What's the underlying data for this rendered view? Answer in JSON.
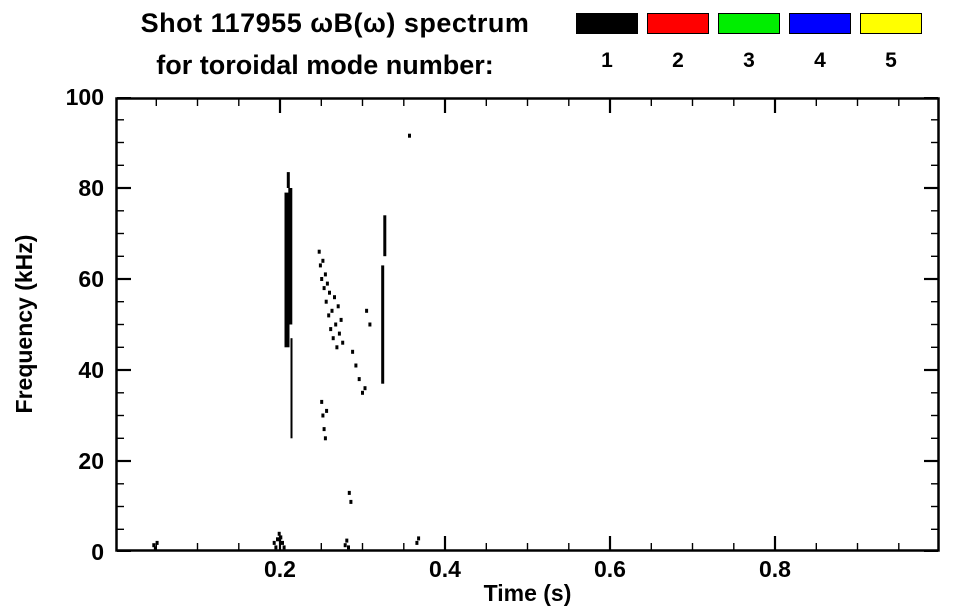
{
  "title": {
    "line1": "Shot 117955 ωB(ω) spectrum",
    "line2": "for toroidal mode number:"
  },
  "legend": {
    "entries": [
      {
        "label": "1",
        "color": "#000000"
      },
      {
        "label": "2",
        "color": "#ff0000"
      },
      {
        "label": "3",
        "color": "#00ee00"
      },
      {
        "label": "4",
        "color": "#0000ff"
      },
      {
        "label": "5",
        "color": "#ffff00"
      }
    ]
  },
  "chart_data": {
    "type": "scatter",
    "title": "Shot 117955 ωB(ω) spectrum for toroidal mode number:",
    "xlabel": "Time (s)",
    "ylabel": "Frequency (kHz)",
    "xlim": [
      0,
      1.0
    ],
    "ylim": [
      0,
      100
    ],
    "grid": false,
    "legend_position": "top-right",
    "x_major_ticks": [
      0.2,
      0.4,
      0.6,
      0.8
    ],
    "x_tick_labels": [
      "0.2",
      "0.4",
      "0.6",
      "0.8"
    ],
    "x_minor_step": 0.05,
    "y_major_ticks": [
      0,
      20,
      40,
      60,
      80,
      100
    ],
    "y_tick_labels": [
      "0",
      "20",
      "40",
      "60",
      "80",
      "100"
    ],
    "y_minor_step": 5,
    "series": [
      {
        "name": "toroidal mode n=1",
        "color": "#000000",
        "segments_note": "vertical streaks as [time_s, freq_lo_kHz, freq_hi_kHz, width_px]",
        "segments": [
          [
            0.2085,
            45,
            79,
            5
          ],
          [
            0.2125,
            50,
            80,
            4
          ],
          [
            0.21,
            80,
            83.5,
            3
          ],
          [
            0.214,
            25,
            47,
            2
          ],
          [
            0.3245,
            37,
            63,
            3
          ],
          [
            0.327,
            65,
            74,
            3
          ]
        ],
        "dots_note": "isolated marks as [time_s, freq_kHz]",
        "dots": [
          [
            0.2475,
            66
          ],
          [
            0.249,
            63
          ],
          [
            0.2505,
            60
          ],
          [
            0.252,
            64
          ],
          [
            0.2535,
            58
          ],
          [
            0.255,
            61
          ],
          [
            0.256,
            55
          ],
          [
            0.2575,
            59
          ],
          [
            0.259,
            52
          ],
          [
            0.26,
            57
          ],
          [
            0.2615,
            49
          ],
          [
            0.263,
            53
          ],
          [
            0.2645,
            47
          ],
          [
            0.266,
            56
          ],
          [
            0.2675,
            50
          ],
          [
            0.269,
            45
          ],
          [
            0.2705,
            54
          ],
          [
            0.272,
            48
          ],
          [
            0.274,
            51
          ],
          [
            0.276,
            46
          ],
          [
            0.2505,
            33
          ],
          [
            0.252,
            30
          ],
          [
            0.2535,
            27
          ],
          [
            0.255,
            25
          ],
          [
            0.2565,
            31
          ],
          [
            0.288,
            44
          ],
          [
            0.292,
            41
          ],
          [
            0.296,
            38
          ],
          [
            0.3,
            35
          ],
          [
            0.303,
            36
          ],
          [
            0.305,
            53
          ],
          [
            0.309,
            50
          ],
          [
            0.284,
            13
          ],
          [
            0.286,
            11
          ],
          [
            0.357,
            91.5
          ],
          [
            0.047,
            1.5
          ],
          [
            0.049,
            0.8
          ],
          [
            0.051,
            2.0
          ],
          [
            0.193,
            2.0
          ],
          [
            0.195,
            1.0
          ],
          [
            0.197,
            2.8
          ],
          [
            0.199,
            4.0
          ],
          [
            0.201,
            3.2
          ],
          [
            0.203,
            2.0
          ],
          [
            0.205,
            1.0
          ],
          [
            0.279,
            1.5
          ],
          [
            0.281,
            2.5
          ],
          [
            0.283,
            1.0
          ],
          [
            0.366,
            2.0
          ],
          [
            0.368,
            3.0
          ]
        ]
      },
      {
        "name": "toroidal mode n=2",
        "color": "#ff0000",
        "dots": []
      },
      {
        "name": "toroidal mode n=3",
        "color": "#00ee00",
        "dots": []
      },
      {
        "name": "toroidal mode n=4",
        "color": "#0000ff",
        "dots": []
      },
      {
        "name": "toroidal mode n=5",
        "color": "#ffff00",
        "dots": []
      }
    ]
  }
}
